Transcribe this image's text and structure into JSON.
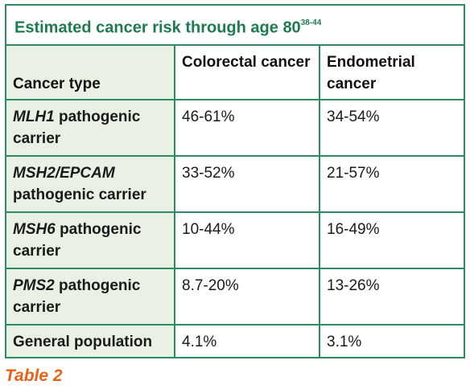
{
  "title": {
    "text": "Estimated cancer risk through age 80",
    "ref": "38-44"
  },
  "header": {
    "col1": "Cancer type",
    "col2": "Colorectal cancer",
    "col3": "Endometrial cancer"
  },
  "rows": [
    {
      "gene": "MLH1",
      "rest": " pathogenic carrier",
      "colorectal": "46-61%",
      "endometrial": "34-54%"
    },
    {
      "gene": "MSH2/EPCAM",
      "rest": " pathogenic carrier",
      "colorectal": "33-52%",
      "endometrial": "21-57%"
    },
    {
      "gene": "MSH6",
      "rest": " pathogenic carrier",
      "colorectal": "10-44%",
      "endometrial": "16-49%"
    },
    {
      "gene": "PMS2",
      "rest": " pathogenic carrier",
      "colorectal": "8.7-20%",
      "endometrial": "13-26%"
    },
    {
      "gene": "",
      "rest": "General population",
      "colorectal": "4.1%",
      "endometrial": "3.1%"
    }
  ],
  "caption": "Table 2",
  "colors": {
    "border": "#2e8a60",
    "title": "#1f7a52",
    "first_col_bg": "#e8f1e3",
    "caption": "#e8621a"
  }
}
